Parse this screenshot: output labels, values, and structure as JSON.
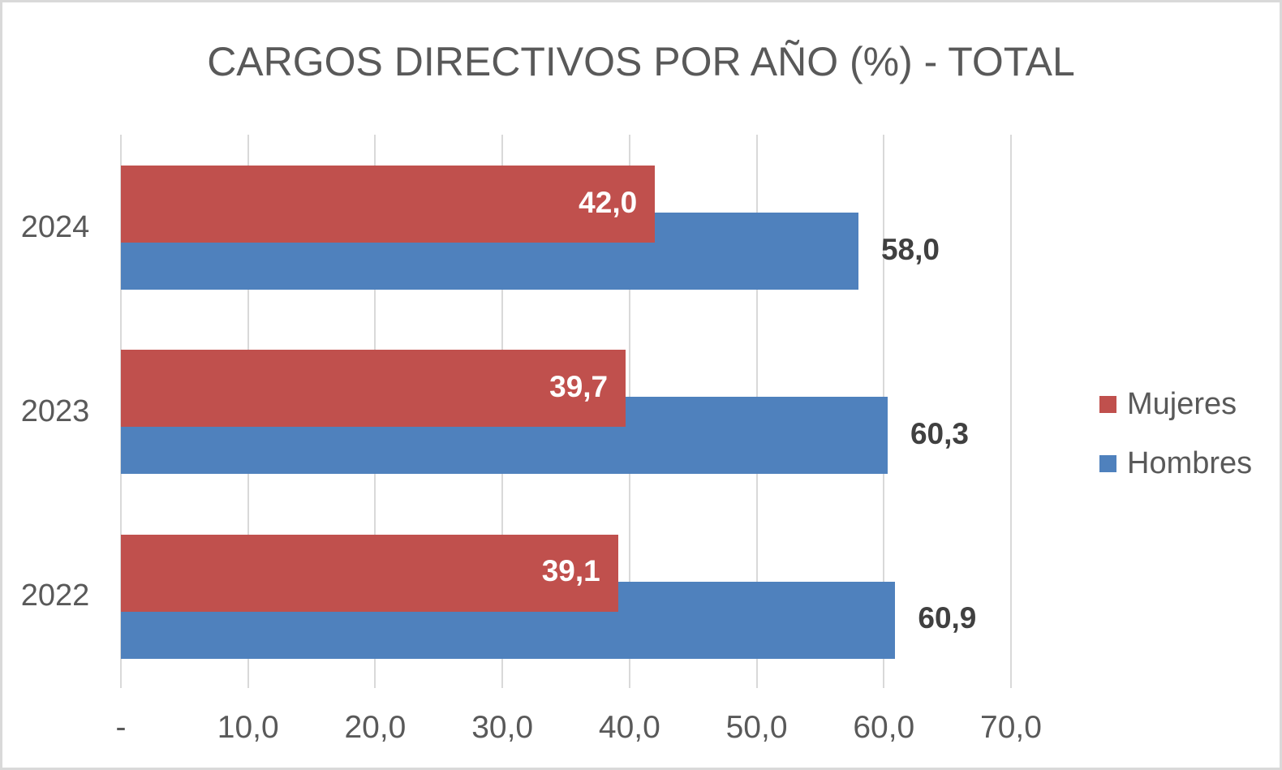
{
  "chart_data": {
    "type": "bar",
    "orientation": "horizontal",
    "title": "CARGOS DIRECTIVOS POR AÑO (%) - TOTAL",
    "categories": [
      "2024",
      "2023",
      "2022"
    ],
    "series": [
      {
        "name": "Mujeres",
        "color": "#C0504D",
        "values": [
          42.0,
          39.7,
          39.1
        ],
        "value_labels": [
          "42,0",
          "39,7",
          "39,1"
        ],
        "label_color": "#FFFFFF",
        "label_placement": "inside-end"
      },
      {
        "name": "Hombres",
        "color": "#4F81BD",
        "values": [
          58.0,
          60.3,
          60.9
        ],
        "value_labels": [
          "58,0",
          "60,3",
          "60,9"
        ],
        "label_color": "#404040",
        "label_placement": "outside-end"
      }
    ],
    "xlim": [
      0,
      70
    ],
    "x_ticks": [
      {
        "value": 0,
        "label": "-"
      },
      {
        "value": 10,
        "label": "10,0"
      },
      {
        "value": 20,
        "label": "20,0"
      },
      {
        "value": 30,
        "label": "30,0"
      },
      {
        "value": 40,
        "label": "40,0"
      },
      {
        "value": 50,
        "label": "50,0"
      },
      {
        "value": 60,
        "label": "60,0"
      },
      {
        "value": 70,
        "label": "70,0"
      }
    ],
    "grid": true,
    "gridline_color": "#D9D9D9",
    "legend_position": "right",
    "text_color": "#595959",
    "background_color": "#FFFFFF",
    "border_color": "#D9D9D9",
    "decimal_separator": ","
  }
}
